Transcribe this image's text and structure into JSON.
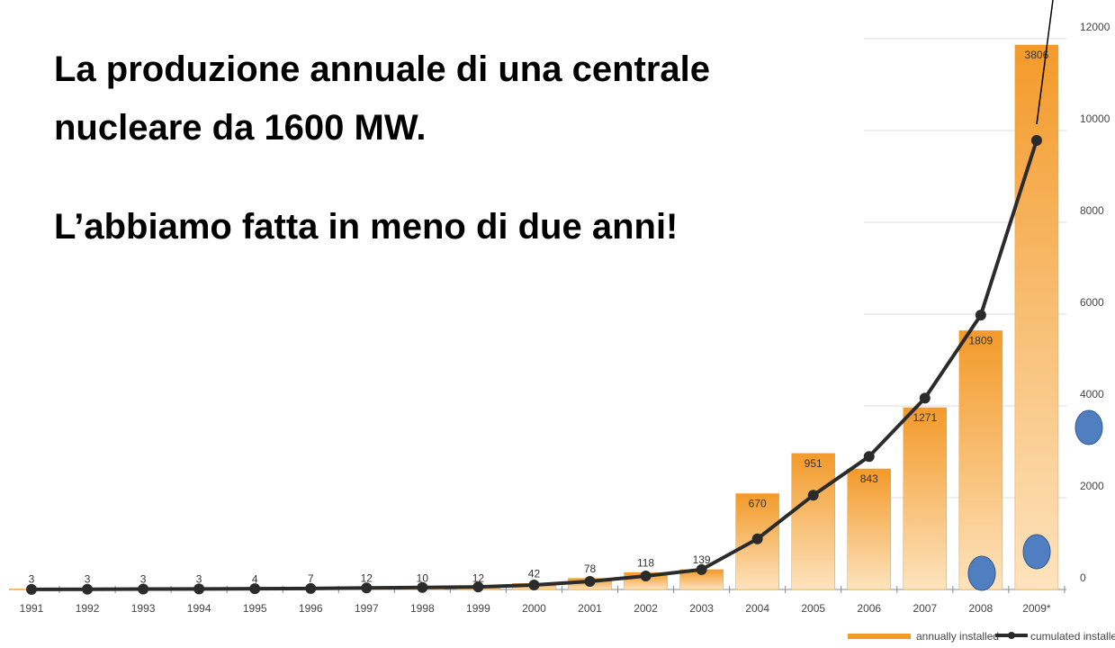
{
  "chart_data": {
    "type": "bar",
    "annotation_lines": [
      "La produzione annuale di una centrale",
      "nucleare da 1600 MW.",
      "L’abbiamo fatta in meno di due anni!"
    ],
    "categories": [
      "1991",
      "1992",
      "1993",
      "1994",
      "1995",
      "1996",
      "1997",
      "1998",
      "1999",
      "2000",
      "2001",
      "2002",
      "2003",
      "2004",
      "2005",
      "2006",
      "2007",
      "2008",
      "2009*"
    ],
    "series": [
      {
        "name": "annually installed",
        "color": "#f39a2a",
        "axis": "y2",
        "type": "bar",
        "values": [
          3,
          3,
          3,
          3,
          4,
          7,
          12,
          10,
          12,
          42,
          78,
          118,
          139,
          670,
          951,
          843,
          1271,
          1809,
          3806
        ]
      },
      {
        "name": "cumulated installed",
        "color": "#2b2b2b",
        "type": "line",
        "values": [
          3,
          6,
          9,
          12,
          16,
          23,
          35,
          45,
          57,
          99,
          177,
          295,
          434,
          1104,
          2055,
          2898,
          4169,
          5978,
          9784
        ]
      }
    ],
    "ylim": [
      0,
      12000
    ],
    "yticks": [
      0,
      2000,
      4000,
      6000,
      8000,
      10000,
      12000
    ],
    "y2lim": [
      0,
      3850
    ],
    "y2ticks": [],
    "grid": true
  }
}
